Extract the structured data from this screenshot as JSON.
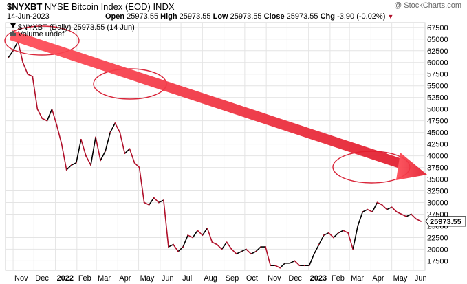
{
  "header": {
    "symbol": "$NYXBT",
    "name": "NYSE Bitcoin Index (EOD)",
    "exchange": "INDX",
    "date": "14-Jun-2023",
    "open_label": "Open",
    "open": "25973.55",
    "high_label": "High",
    "high": "25973.55",
    "low_label": "Low",
    "low": "25973.55",
    "close_label": "Close",
    "close": "25973.55",
    "chg_label": "Chg",
    "chg": "-3.90 (-0.02%)",
    "watermark": "@ StockCharts.com"
  },
  "legend": {
    "series_label": "$NYXBT (Daily) 25973.55 (14 Jun)",
    "volume_label": "Volume undef"
  },
  "last_price_label": "25973.55",
  "colors": {
    "up": "#000000",
    "down": "#b0102a",
    "arrow": "#e8283a",
    "grid": "#e4e4e4"
  },
  "chart_data": {
    "type": "line",
    "title": "NYSE Bitcoin Index (EOD)",
    "x_ticks": [
      "Nov",
      "Dec",
      "2022",
      "Feb",
      "Mar",
      "Apr",
      "May",
      "Jun",
      "Jul",
      "Aug",
      "Sep",
      "Oct",
      "Nov",
      "Dec",
      "2023",
      "Feb",
      "Mar",
      "Apr",
      "May",
      "Jun"
    ],
    "y_ticks": [
      17500,
      20000,
      22500,
      25000,
      27500,
      30000,
      32500,
      35000,
      37500,
      40000,
      42500,
      45000,
      47500,
      50000,
      52500,
      55000,
      57500,
      60000,
      62500,
      65000,
      67500
    ],
    "ylim": [
      15500,
      68500
    ],
    "grid": true,
    "series": [
      {
        "dates": [
          "2021-10-25",
          "2021-11-01",
          "2021-11-08",
          "2021-11-15",
          "2021-11-22",
          "2021-11-29",
          "2021-12-06",
          "2021-12-13",
          "2021-12-20",
          "2021-12-27",
          "2022-01-03",
          "2022-01-10",
          "2022-01-17",
          "2022-01-24",
          "2022-01-31",
          "2022-02-07",
          "2022-02-14",
          "2022-02-21",
          "2022-02-28",
          "2022-03-07",
          "2022-03-14",
          "2022-03-21",
          "2022-03-28",
          "2022-04-04",
          "2022-04-11",
          "2022-04-18",
          "2022-04-25",
          "2022-05-02",
          "2022-05-09",
          "2022-05-16",
          "2022-05-23",
          "2022-05-30",
          "2022-06-06",
          "2022-06-13",
          "2022-06-20",
          "2022-06-27",
          "2022-07-04",
          "2022-07-11",
          "2022-07-18",
          "2022-07-25",
          "2022-08-01",
          "2022-08-08",
          "2022-08-15",
          "2022-08-22",
          "2022-08-29",
          "2022-09-05",
          "2022-09-12",
          "2022-09-19",
          "2022-09-26",
          "2022-10-03",
          "2022-10-10",
          "2022-10-17",
          "2022-10-24",
          "2022-10-31",
          "2022-11-07",
          "2022-11-14",
          "2022-11-21",
          "2022-11-28",
          "2022-12-05",
          "2022-12-12",
          "2022-12-19",
          "2022-12-26",
          "2023-01-02",
          "2023-01-09",
          "2023-01-16",
          "2023-01-23",
          "2023-01-30",
          "2023-02-06",
          "2023-02-13",
          "2023-02-20",
          "2023-02-27",
          "2023-03-06",
          "2023-03-13",
          "2023-03-20",
          "2023-03-27",
          "2023-04-03",
          "2023-04-10",
          "2023-04-17",
          "2023-04-24",
          "2023-05-01",
          "2023-05-08",
          "2023-05-15",
          "2023-05-22",
          "2023-05-29",
          "2023-06-05",
          "2023-06-12"
        ],
        "values": [
          61000,
          62500,
          64500,
          60000,
          57500,
          57000,
          50000,
          48000,
          47500,
          50000,
          46500,
          42500,
          37000,
          38000,
          38500,
          43500,
          40000,
          38000,
          44000,
          39000,
          41000,
          45000,
          47000,
          45000,
          40500,
          41500,
          38500,
          37500,
          30000,
          29500,
          31000,
          30000,
          30500,
          20500,
          21000,
          19500,
          20500,
          23000,
          22500,
          24000,
          23000,
          24500,
          21500,
          21000,
          20000,
          21500,
          20000,
          19000,
          19500,
          20000,
          19000,
          19500,
          20500,
          20500,
          16500,
          16500,
          16000,
          17000,
          17000,
          17500,
          16500,
          16500,
          16500,
          19000,
          21000,
          23000,
          23500,
          22500,
          23500,
          24000,
          23500,
          20000,
          25000,
          28000,
          28500,
          28000,
          30000,
          29500,
          28500,
          29000,
          28000,
          27500,
          27000,
          27500,
          26500,
          25973.55
        ]
      }
    ]
  }
}
